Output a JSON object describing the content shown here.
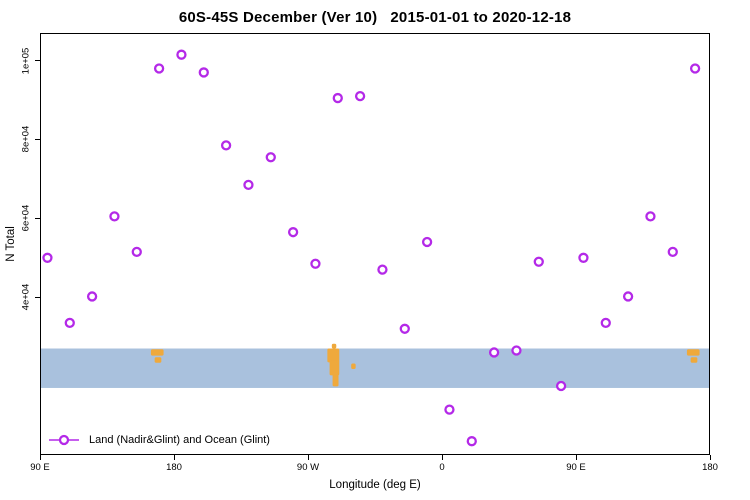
{
  "chart_data": {
    "type": "scatter",
    "title": "60S-45S December (Ver 10)   2015-01-01 to 2020-12-18",
    "xlabel": "Longitude (deg E)",
    "ylabel": "N Total",
    "legend_label": "Land (Nadir&Glint) and Ocean (Glint)",
    "xlim": [
      90,
      540
    ],
    "ylim": [
      0,
      107000
    ],
    "grid": false,
    "legend_position": "bottom-left",
    "x_ticks": [
      {
        "value": 90,
        "label": "90 E"
      },
      {
        "value": 180,
        "label": "180"
      },
      {
        "value": 270,
        "label": "90 W"
      },
      {
        "value": 360,
        "label": "0"
      },
      {
        "value": 450,
        "label": "90 E"
      },
      {
        "value": 540,
        "label": "180"
      }
    ],
    "y_ticks": [
      {
        "value": 100000,
        "label": "1e+05"
      },
      {
        "value": 80000,
        "label": "8e+04"
      },
      {
        "value": 60000,
        "label": "6e+04"
      },
      {
        "value": 40000,
        "label": "4e+04"
      }
    ],
    "marker_color": "#b429e8",
    "land_color": "#efa93c",
    "ocean_band": {
      "top_value": 27000,
      "bottom_value": 17000,
      "color": "#a9c1dd"
    },
    "land_patches": [
      {
        "lon_min": 164.5,
        "lon_max": 173.0,
        "top": 0.02,
        "h": 0.16
      },
      {
        "lon_min": 167.0,
        "lon_max": 171.5,
        "top": 0.22,
        "h": 0.14
      },
      {
        "lon_min": 286.0,
        "lon_max": 289.0,
        "top": -0.12,
        "h": 0.12
      },
      {
        "lon_min": 283.0,
        "lon_max": 291.0,
        "top": 0.0,
        "h": 0.35
      },
      {
        "lon_min": 284.5,
        "lon_max": 291.0,
        "top": 0.3,
        "h": 0.38
      },
      {
        "lon_min": 286.5,
        "lon_max": 290.5,
        "top": 0.62,
        "h": 0.34
      },
      {
        "lon_min": 299.0,
        "lon_max": 302.0,
        "top": 0.38,
        "h": 0.14
      },
      {
        "lon_min": 524.5,
        "lon_max": 533.0,
        "top": 0.02,
        "h": 0.16
      },
      {
        "lon_min": 527.0,
        "lon_max": 531.5,
        "top": 0.22,
        "h": 0.14
      }
    ],
    "points": [
      {
        "lon": 95,
        "n": 50000
      },
      {
        "lon": 110,
        "n": 33500
      },
      {
        "lon": 125,
        "n": 40200
      },
      {
        "lon": 140,
        "n": 60500
      },
      {
        "lon": 155,
        "n": 51500
      },
      {
        "lon": 170,
        "n": 98000
      },
      {
        "lon": 185,
        "n": 101500
      },
      {
        "lon": 200,
        "n": 97000
      },
      {
        "lon": 215,
        "n": 78500
      },
      {
        "lon": 230,
        "n": 68500
      },
      {
        "lon": 245,
        "n": 75500
      },
      {
        "lon": 260,
        "n": 56500
      },
      {
        "lon": 275,
        "n": 48500
      },
      {
        "lon": 290,
        "n": 90500
      },
      {
        "lon": 305,
        "n": 91000
      },
      {
        "lon": 320,
        "n": 47000
      },
      {
        "lon": 335,
        "n": 32000
      },
      {
        "lon": 350,
        "n": 54000
      },
      {
        "lon": 365,
        "n": 11500
      },
      {
        "lon": 380,
        "n": 3500
      },
      {
        "lon": 395,
        "n": 26000
      },
      {
        "lon": 410,
        "n": 26500
      },
      {
        "lon": 425,
        "n": 49000
      },
      {
        "lon": 440,
        "n": 17500
      },
      {
        "lon": 455,
        "n": 50000
      },
      {
        "lon": 470,
        "n": 33500
      },
      {
        "lon": 485,
        "n": 40200
      },
      {
        "lon": 500,
        "n": 60500
      },
      {
        "lon": 515,
        "n": 51500
      },
      {
        "lon": 530,
        "n": 98000
      }
    ]
  }
}
